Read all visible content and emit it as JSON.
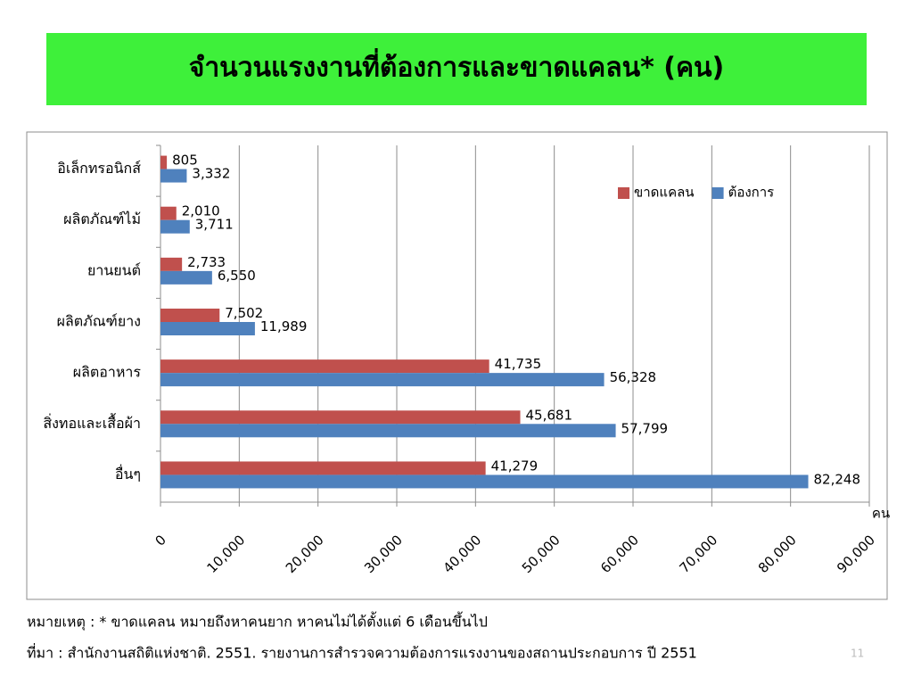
{
  "chart_data": {
    "type": "bar",
    "orientation": "horizontal",
    "title": "จำนวนแรงงานที่ต้องการและขาดแคลน* (คน)",
    "x_axis_label": "คน",
    "categories": [
      "อิเล็กทรอนิกส์",
      "ผลิตภัณฑ์ไม้",
      "ยานยนต์",
      "ผลิตภัณฑ์ยาง",
      "ผลิตอาหาร",
      "สิ่งทอและเสื้อผ้า",
      "อื่นๆ"
    ],
    "series": [
      {
        "name": "ขาดแคลน",
        "color": "#c0504d",
        "values": [
          805,
          2010,
          2733,
          7502,
          41735,
          45681,
          41279
        ],
        "value_labels": [
          "805",
          "2,010",
          "2,733",
          "7,502",
          "41,735",
          "45,681",
          "41,279"
        ]
      },
      {
        "name": "ต้องการ",
        "color": "#4f81bd",
        "values": [
          3332,
          3711,
          6550,
          11989,
          56328,
          57799,
          82248
        ],
        "value_labels": [
          "3,332",
          "3,711",
          "6,550",
          "11,989",
          "56,328",
          "57,799",
          "82,248"
        ]
      }
    ],
    "xlim": [
      0,
      90000
    ],
    "xticks": [
      0,
      {
        "value": 10000,
        "label": "10,000"
      },
      {
        "value": 20000,
        "label": "20,000"
      },
      {
        "value": 30000,
        "label": "30,000"
      },
      {
        "value": 40000,
        "label": "40,000"
      },
      {
        "value": 50000,
        "label": "50,000"
      },
      {
        "value": 60000,
        "label": "60,000"
      },
      {
        "value": 70000,
        "label": "70,000"
      },
      {
        "value": 80000,
        "label": "80,000"
      },
      {
        "value": 90000,
        "label": "90,000"
      }
    ],
    "grid": true,
    "legend": "upper right"
  },
  "notes": [
    "หมายเหตุ : * ขาดแคลน หมายถึงหาคนยาก หาคนไม่ได้ตั้งแต่ 6 เดือนขึ้นไป",
    "ที่มา : สำนักงานสถิติแห่งชาติ. 2551. รายงานการสำรวจความต้องการแรงงานของสถานประกอบการ ปี 2551"
  ],
  "page_number": "11"
}
